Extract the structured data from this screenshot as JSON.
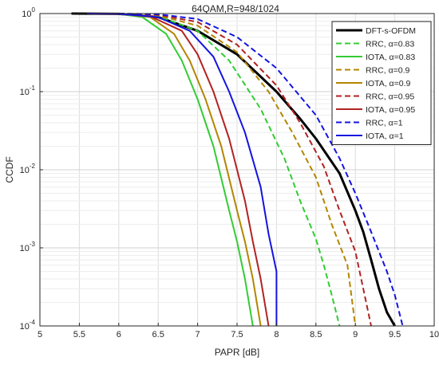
{
  "chart_data": {
    "type": "line",
    "title": "64QAM,R=948/1024",
    "xlabel": "PAPR [dB]",
    "ylabel": "CCDF",
    "xlim": [
      5,
      10
    ],
    "ylim": [
      0.0001,
      1
    ],
    "yscale": "log",
    "grid": true,
    "legend_position": "top-right",
    "x_ticks": [
      "5",
      "5.5",
      "6",
      "6.5",
      "7",
      "7.5",
      "8",
      "8.5",
      "9",
      "9.5",
      "10"
    ],
    "y_ticks": [
      {
        "base": "10",
        "exp": "0"
      },
      {
        "base": "10",
        "exp": "-1"
      },
      {
        "base": "10",
        "exp": "-2"
      },
      {
        "base": "10",
        "exp": "-3"
      },
      {
        "base": "10",
        "exp": "-4"
      }
    ],
    "series": [
      {
        "name": "DFT-s-OFDM",
        "color": "#000000",
        "dash": "solid",
        "width": 3,
        "points": [
          [
            5.4,
            1
          ],
          [
            6,
            0.99
          ],
          [
            6.5,
            0.9
          ],
          [
            7,
            0.6
          ],
          [
            7.5,
            0.3
          ],
          [
            8,
            0.1
          ],
          [
            8.3,
            0.045
          ],
          [
            8.5,
            0.025
          ],
          [
            8.8,
            0.009
          ],
          [
            9,
            0.003
          ],
          [
            9.1,
            0.0016
          ],
          [
            9.2,
            0.0007
          ],
          [
            9.3,
            0.0003
          ],
          [
            9.4,
            0.00015
          ],
          [
            9.5,
            0.0001
          ]
        ]
      },
      {
        "name": "RRC, α=0.83",
        "color": "#33cc33",
        "dash": "dashed",
        "width": 2,
        "points": [
          [
            6,
            1
          ],
          [
            6.5,
            0.93
          ],
          [
            7,
            0.6
          ],
          [
            7.4,
            0.25
          ],
          [
            7.8,
            0.06
          ],
          [
            8.1,
            0.014
          ],
          [
            8.3,
            0.004
          ],
          [
            8.5,
            0.0013
          ],
          [
            8.6,
            0.0006
          ],
          [
            8.7,
            0.00025
          ],
          [
            8.8,
            0.0001
          ]
        ]
      },
      {
        "name": "IOTA, α=0.83",
        "color": "#33cc33",
        "dash": "solid",
        "width": 2,
        "points": [
          [
            5.6,
            1
          ],
          [
            6,
            0.99
          ],
          [
            6.3,
            0.9
          ],
          [
            6.6,
            0.55
          ],
          [
            6.8,
            0.25
          ],
          [
            7,
            0.08
          ],
          [
            7.2,
            0.02
          ],
          [
            7.4,
            0.003
          ],
          [
            7.5,
            0.0012
          ],
          [
            7.6,
            0.0004
          ],
          [
            7.7,
            0.0001
          ]
        ]
      },
      {
        "name": "RRC, α=0.9",
        "color": "#b38600",
        "dash": "dashed",
        "width": 2,
        "points": [
          [
            6,
            1
          ],
          [
            6.5,
            0.95
          ],
          [
            7,
            0.7
          ],
          [
            7.5,
            0.32
          ],
          [
            7.9,
            0.1
          ],
          [
            8.2,
            0.03
          ],
          [
            8.5,
            0.008
          ],
          [
            8.7,
            0.002
          ],
          [
            8.9,
            0.0006
          ],
          [
            9,
            0.0001
          ]
        ]
      },
      {
        "name": "IOTA, α=0.9",
        "color": "#b38600",
        "dash": "solid",
        "width": 2,
        "points": [
          [
            5.6,
            1
          ],
          [
            6,
            0.99
          ],
          [
            6.4,
            0.9
          ],
          [
            6.7,
            0.55
          ],
          [
            6.9,
            0.25
          ],
          [
            7.1,
            0.08
          ],
          [
            7.3,
            0.02
          ],
          [
            7.5,
            0.003
          ],
          [
            7.6,
            0.0012
          ],
          [
            7.7,
            0.0004
          ],
          [
            7.8,
            0.0001
          ]
        ]
      },
      {
        "name": "RRC, α=0.95",
        "color": "#b22222",
        "dash": "dashed",
        "width": 2,
        "points": [
          [
            6,
            1
          ],
          [
            6.5,
            0.96
          ],
          [
            7,
            0.78
          ],
          [
            7.5,
            0.4
          ],
          [
            8,
            0.12
          ],
          [
            8.3,
            0.04
          ],
          [
            8.6,
            0.011
          ],
          [
            8.8,
            0.003
          ],
          [
            9,
            0.0009
          ],
          [
            9.1,
            0.0003
          ],
          [
            9.2,
            0.0001
          ]
        ]
      },
      {
        "name": "IOTA, α=0.95",
        "color": "#b22222",
        "dash": "solid",
        "width": 2,
        "points": [
          [
            5.6,
            1
          ],
          [
            6,
            0.99
          ],
          [
            6.4,
            0.92
          ],
          [
            6.8,
            0.6
          ],
          [
            7,
            0.3
          ],
          [
            7.2,
            0.1
          ],
          [
            7.4,
            0.025
          ],
          [
            7.6,
            0.004
          ],
          [
            7.7,
            0.0012
          ],
          [
            7.8,
            0.0004
          ],
          [
            7.9,
            0.0001
          ]
        ]
      },
      {
        "name": "RRC, α=1",
        "color": "#1414e0",
        "dash": "dashed",
        "width": 2,
        "points": [
          [
            6,
            1
          ],
          [
            6.5,
            0.98
          ],
          [
            7,
            0.85
          ],
          [
            7.5,
            0.5
          ],
          [
            8,
            0.2
          ],
          [
            8.5,
            0.05
          ],
          [
            8.8,
            0.014
          ],
          [
            9,
            0.005
          ],
          [
            9.2,
            0.0016
          ],
          [
            9.4,
            0.0005
          ],
          [
            9.5,
            0.00025
          ],
          [
            9.6,
            0.0001
          ]
        ]
      },
      {
        "name": "IOTA, α=1",
        "color": "#1414e0",
        "dash": "solid",
        "width": 2,
        "points": [
          [
            5.6,
            1
          ],
          [
            6,
            0.99
          ],
          [
            6.5,
            0.9
          ],
          [
            6.9,
            0.6
          ],
          [
            7.2,
            0.28
          ],
          [
            7.4,
            0.1
          ],
          [
            7.6,
            0.03
          ],
          [
            7.8,
            0.006
          ],
          [
            7.9,
            0.0015
          ],
          [
            8,
            0.0005
          ],
          [
            8,
            0.0001
          ]
        ]
      }
    ]
  }
}
